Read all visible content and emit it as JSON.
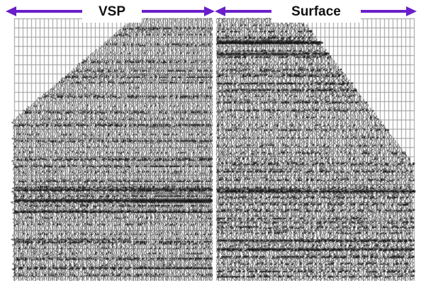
{
  "panels": {
    "left": {
      "label": "VSP"
    },
    "right": {
      "label": "Surface"
    }
  },
  "colors": {
    "arrow": "#6a1fc9",
    "trace": "#111111",
    "grid": "#9a9a9a",
    "divider": "#ffffff",
    "background": "#ffffff"
  }
}
